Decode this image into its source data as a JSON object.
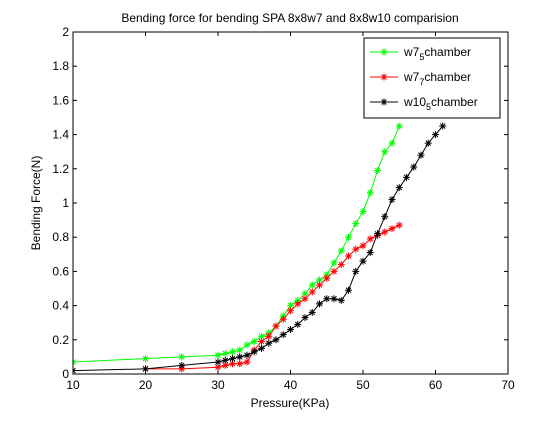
{
  "chart_data": {
    "type": "line",
    "title": "Bending force for bending SPA 8x8w7 and 8x8w10 comparision",
    "xlabel": "Pressure(KPa)",
    "ylabel": "Bending Force(N)",
    "xlim": [
      10,
      70
    ],
    "ylim": [
      0,
      2
    ],
    "xticks": [
      10,
      20,
      30,
      40,
      50,
      60,
      70
    ],
    "xtick_labels": [
      "10",
      "20",
      "30",
      "40",
      "50",
      "60",
      "70"
    ],
    "yticks": [
      0,
      0.2,
      0.4,
      0.6,
      0.8,
      1.0,
      1.2,
      1.4,
      1.6,
      1.8,
      2.0
    ],
    "ytick_labels": [
      "0",
      "0.2",
      "0.4",
      "0.6",
      "0.8",
      "1",
      "1.2",
      "1.4",
      "1.6",
      "1.8",
      "2"
    ],
    "grid": false,
    "legend_position": "top-right",
    "series": [
      {
        "name": "w75chamber",
        "label_main": "w7",
        "label_sub": "5",
        "label_tail": "chamber",
        "color": "#00ff00",
        "marker": "asterisk",
        "x": [
          10,
          20,
          25,
          30,
          31,
          32,
          33,
          34,
          35,
          36,
          37,
          38,
          39,
          40,
          41,
          42,
          43,
          44,
          45,
          46,
          47,
          48,
          49,
          50,
          51,
          52,
          53,
          54,
          55
        ],
        "y": [
          0.07,
          0.09,
          0.1,
          0.11,
          0.12,
          0.13,
          0.14,
          0.17,
          0.19,
          0.22,
          0.24,
          0.28,
          0.34,
          0.4,
          0.43,
          0.47,
          0.52,
          0.55,
          0.58,
          0.65,
          0.72,
          0.8,
          0.88,
          0.95,
          1.06,
          1.19,
          1.3,
          1.35,
          1.45
        ]
      },
      {
        "name": "w77chamber",
        "label_main": "w7",
        "label_sub": "7",
        "label_tail": "chamber",
        "color": "#ff0000",
        "marker": "asterisk",
        "x": [
          20,
          25,
          30,
          31,
          32,
          33,
          34,
          35,
          36,
          37,
          38,
          39,
          40,
          41,
          42,
          43,
          44,
          45,
          46,
          47,
          48,
          49,
          50,
          51,
          52,
          53,
          54,
          55
        ],
        "y": [
          0.03,
          0.03,
          0.04,
          0.05,
          0.06,
          0.06,
          0.07,
          0.14,
          0.19,
          0.22,
          0.28,
          0.32,
          0.37,
          0.41,
          0.44,
          0.48,
          0.52,
          0.56,
          0.6,
          0.64,
          0.69,
          0.73,
          0.75,
          0.79,
          0.81,
          0.83,
          0.85,
          0.87
        ]
      },
      {
        "name": "w105chamber",
        "label_main": "w10",
        "label_sub": "5",
        "label_tail": "chamber",
        "color": "#000000",
        "marker": "asterisk",
        "x": [
          10,
          20,
          25,
          30,
          31,
          32,
          33,
          34,
          35,
          36,
          37,
          38,
          39,
          40,
          41,
          42,
          43,
          44,
          45,
          46,
          47,
          48,
          49,
          50,
          51,
          52,
          53,
          54,
          55,
          56,
          57,
          58,
          59,
          60,
          61
        ],
        "y": [
          0.02,
          0.03,
          0.05,
          0.07,
          0.08,
          0.09,
          0.1,
          0.11,
          0.13,
          0.15,
          0.18,
          0.2,
          0.23,
          0.26,
          0.29,
          0.33,
          0.36,
          0.41,
          0.44,
          0.44,
          0.43,
          0.49,
          0.6,
          0.66,
          0.71,
          0.82,
          0.92,
          1.02,
          1.09,
          1.15,
          1.21,
          1.28,
          1.35,
          1.4,
          1.45
        ]
      }
    ]
  }
}
